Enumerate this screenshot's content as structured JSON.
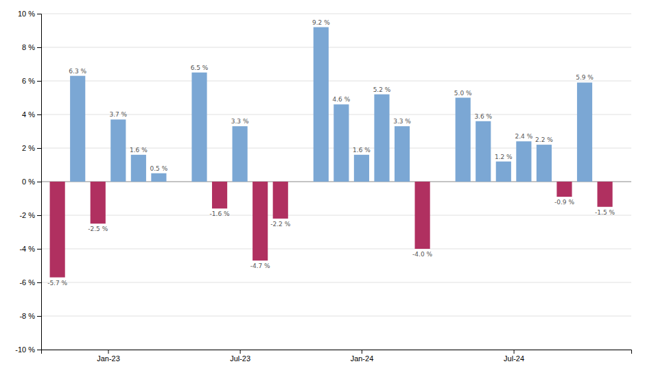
{
  "chart_data": {
    "type": "bar",
    "x": [
      0,
      1,
      2,
      3,
      4,
      5,
      7,
      8,
      9,
      10,
      11,
      13,
      14,
      15,
      16,
      17,
      18,
      20,
      21,
      22,
      23,
      24,
      25,
      26,
      27
    ],
    "values": [
      -5.7,
      6.3,
      -2.5,
      3.7,
      1.6,
      0.5,
      6.5,
      -1.6,
      3.3,
      -4.7,
      -2.2,
      9.2,
      4.6,
      1.6,
      5.2,
      3.3,
      -4.0,
      5.0,
      3.6,
      1.2,
      2.4,
      2.2,
      -0.9,
      5.9,
      -1.5
    ],
    "value_labels": [
      "-5.7 %",
      "6.3 %",
      "-2.5 %",
      "3.7 %",
      "1.6 %",
      "0.5 %",
      "6.5 %",
      "-1.6 %",
      "3.3 %",
      "-4.7 %",
      "-2.2 %",
      "9.2 %",
      "4.6 %",
      "1.6 %",
      "5.2 %",
      "3.3 %",
      "-4.0 %",
      "5.0 %",
      "3.6 %",
      "1.2 %",
      "2.4 %",
      "2.2 %",
      "-0.9 %",
      "5.9 %",
      "-1.5 %"
    ],
    "colors": [
      "#b03060",
      "#7ba7d4",
      "#b03060",
      "#7ba7d4",
      "#7ba7d4",
      "#7ba7d4",
      "#7ba7d4",
      "#b03060",
      "#7ba7d4",
      "#b03060",
      "#b03060",
      "#7ba7d4",
      "#7ba7d4",
      "#7ba7d4",
      "#7ba7d4",
      "#7ba7d4",
      "#b03060",
      "#7ba7d4",
      "#7ba7d4",
      "#7ba7d4",
      "#7ba7d4",
      "#7ba7d4",
      "#b03060",
      "#7ba7d4",
      "#b03060"
    ],
    "xlim": [
      -0.8,
      28.3
    ],
    "xticks": [
      {
        "value": 2.5,
        "label": "Jan-23"
      },
      {
        "value": 9.0,
        "label": "Jul-23"
      },
      {
        "value": 15.0,
        "label": "Jan-24"
      },
      {
        "value": 22.5,
        "label": "Jul-24"
      }
    ],
    "ylim": [
      -10,
      10
    ],
    "yticks": [
      {
        "value": -10,
        "label": "-10 %"
      },
      {
        "value": -8,
        "label": "-8 %"
      },
      {
        "value": -6,
        "label": "-6 %"
      },
      {
        "value": -4,
        "label": "-4 %"
      },
      {
        "value": -2,
        "label": "-2 %"
      },
      {
        "value": 0,
        "label": "0 %"
      },
      {
        "value": 2,
        "label": "2 %"
      },
      {
        "value": 4,
        "label": "4 %"
      },
      {
        "value": 6,
        "label": "6 %"
      },
      {
        "value": 8,
        "label": "8 %"
      },
      {
        "value": 10,
        "label": "10 %"
      }
    ],
    "grid": true,
    "data_labels": true
  }
}
